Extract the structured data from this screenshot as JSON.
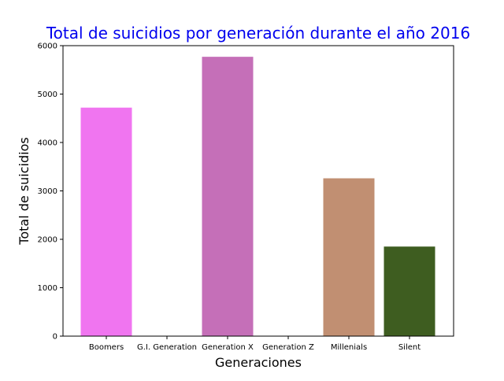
{
  "chart_data": {
    "type": "bar",
    "title": "Total de suicidios por generación durante el año 2016",
    "xlabel": "Generaciones",
    "ylabel": "Total de suicidios",
    "categories": [
      "Boomers",
      "G.I. Generation",
      "Generation X",
      "Generation Z",
      "Millenials",
      "Silent"
    ],
    "values": [
      4720,
      0,
      5770,
      0,
      3260,
      1850
    ],
    "bar_colors": [
      "#f075f0",
      "#c56fb8",
      "#c56fb8",
      "#c56fb8",
      "#c18f72",
      "#3e5d20"
    ],
    "ylim": [
      0,
      6000
    ],
    "yticks": [
      0,
      1000,
      2000,
      3000,
      4000,
      5000,
      6000
    ],
    "grid": false,
    "title_color": "#0000ee"
  }
}
